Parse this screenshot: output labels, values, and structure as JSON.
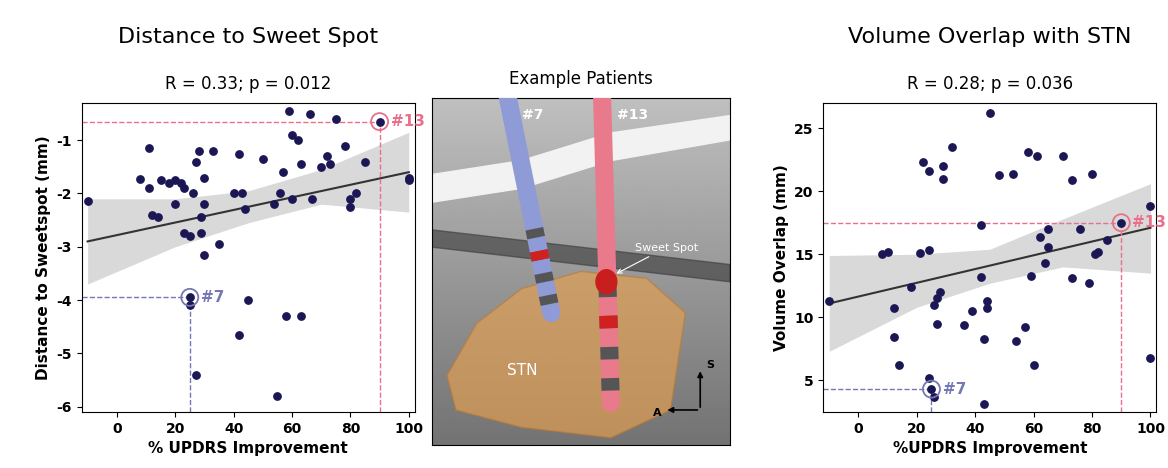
{
  "chart_data": [
    {
      "type": "scatter",
      "title": "Distance to Sweet Spot",
      "subtitle": "R = 0.33; p = 0.012",
      "x_label": "% UPDRS Improvement",
      "y_label": "Distance to Sweetspot (mm)",
      "color": "#1b1755",
      "grid": false,
      "xlim": [
        -12,
        102
      ],
      "xticks": [
        0,
        20,
        40,
        60,
        80,
        100
      ],
      "ylim": [
        -6.1,
        -0.3
      ],
      "yticks": [
        -6,
        -5,
        -4,
        -3,
        -2,
        -1
      ],
      "x": [
        -10,
        8,
        11,
        11,
        12,
        14,
        15,
        18,
        20,
        20,
        22,
        23,
        23,
        25,
        25,
        26,
        27,
        27,
        28,
        29,
        29,
        30,
        30,
        30,
        33,
        35,
        40,
        42,
        42,
        43,
        44,
        45,
        50,
        54,
        55,
        56,
        57,
        58,
        59,
        60,
        60,
        62,
        63,
        63,
        66,
        67,
        70,
        72,
        73,
        75,
        78,
        80,
        80,
        82,
        85,
        100,
        100
      ],
      "values": [
        -2.15,
        -1.72,
        -1.15,
        -1.9,
        -2.4,
        -2.45,
        -1.75,
        -1.8,
        -1.75,
        -2.2,
        -1.8,
        -2.75,
        -1.9,
        -4.1,
        -2.8,
        -2.0,
        -1.4,
        -5.4,
        -1.2,
        -2.75,
        -2.45,
        -2.2,
        -3.15,
        -1.7,
        -1.2,
        -2.95,
        -2.0,
        -1.25,
        -4.65,
        -2.0,
        -2.3,
        -4.0,
        -1.35,
        -2.2,
        -5.8,
        -2.0,
        -1.6,
        -4.3,
        -0.45,
        -0.9,
        -2.1,
        -1.0,
        -4.3,
        -1.45,
        -0.5,
        -2.1,
        -1.5,
        -1.3,
        -1.45,
        -0.6,
        -1.1,
        -2.1,
        -2.25,
        -2.0,
        -1.4,
        -1.7,
        -1.75
      ],
      "fit": {
        "x": [
          -10,
          100
        ],
        "y": [
          -2.9,
          -1.6
        ]
      },
      "confidence_band": {
        "x": [
          -10,
          20,
          45,
          70,
          100
        ],
        "lower": [
          -3.7,
          -3.0,
          -2.55,
          -2.2,
          -2.35
        ],
        "upper": [
          -2.1,
          -2.1,
          -1.95,
          -1.55,
          -0.85
        ]
      },
      "highlights": [
        {
          "label": "#7",
          "x": 25,
          "y": -3.95,
          "color": "#7478b4"
        },
        {
          "label": "#13",
          "x": 90,
          "y": -0.65,
          "color": "#e8708a"
        }
      ]
    },
    {
      "type": "scatter",
      "title": "Volume Overlap with STN",
      "subtitle": "R = 0.28; p = 0.036",
      "x_label": "%UPDRS Improvement",
      "y_label": "Volume Overlap (mm)",
      "color": "#1b1755",
      "grid": false,
      "xlim": [
        -12,
        102
      ],
      "xticks": [
        0,
        20,
        40,
        60,
        80,
        100
      ],
      "ylim": [
        2.5,
        27
      ],
      "yticks": [
        5,
        10,
        15,
        20,
        25
      ],
      "x": [
        -10,
        8,
        10,
        12,
        12,
        14,
        18,
        21,
        22,
        24,
        24,
        24,
        26,
        26,
        27,
        27,
        28,
        29,
        29,
        32,
        36,
        39,
        42,
        42,
        43,
        43,
        44,
        44,
        45,
        48,
        53,
        54,
        57,
        58,
        59,
        60,
        61,
        62,
        64,
        65,
        65,
        70,
        73,
        73,
        76,
        79,
        80,
        81,
        82,
        85,
        100,
        100
      ],
      "values": [
        11.3,
        15.0,
        15.2,
        10.7,
        8.4,
        6.2,
        12.4,
        15.1,
        22.3,
        21.6,
        15.3,
        5.2,
        3.7,
        11.0,
        11.5,
        9.5,
        12.0,
        22.0,
        21.0,
        23.5,
        9.4,
        10.5,
        17.3,
        13.2,
        8.3,
        3.1,
        11.3,
        10.7,
        26.2,
        21.3,
        21.4,
        8.1,
        9.2,
        23.1,
        13.3,
        6.2,
        22.8,
        16.4,
        14.3,
        17.0,
        15.6,
        22.8,
        20.9,
        13.1,
        17.0,
        12.7,
        21.4,
        15.0,
        15.2,
        16.1,
        18.8,
        6.8
      ],
      "fit": {
        "x": [
          -10,
          100
        ],
        "y": [
          11.1,
          17.1
        ]
      },
      "confidence_band": {
        "x": [
          -10,
          20,
          45,
          70,
          100
        ],
        "lower": [
          7.3,
          10.8,
          12.7,
          14.0,
          13.5
        ],
        "upper": [
          14.9,
          15.0,
          15.4,
          17.8,
          20.6
        ]
      },
      "highlights": [
        {
          "label": "#7",
          "x": 25,
          "y": 4.3,
          "color": "#7478b4"
        },
        {
          "label": "#13",
          "x": 90,
          "y": 17.5,
          "color": "#e8708a"
        }
      ]
    }
  ],
  "diagram": {
    "title": "Example Patients",
    "electrodes": [
      {
        "label": "#7",
        "color": "#8e9bd6"
      },
      {
        "label": "#13",
        "color": "#e87a8c"
      }
    ],
    "sweet_spot_label": "Sweet Spot",
    "region_label": "STN",
    "axis_labels": {
      "superior": "S",
      "anterior": "A"
    }
  }
}
